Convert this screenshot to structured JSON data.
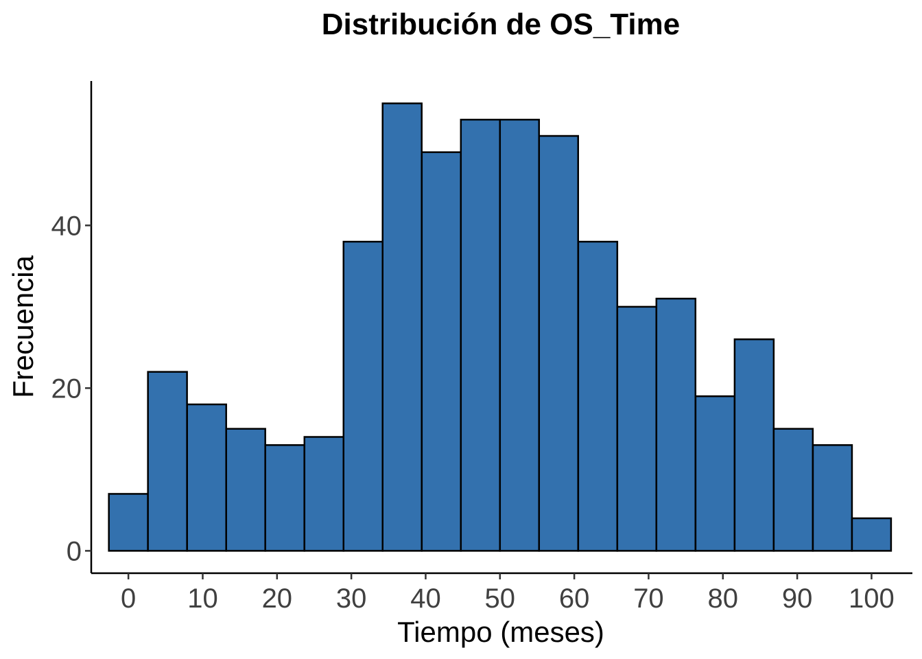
{
  "chart_data": {
    "type": "bar",
    "title": "Distribución de OS_Time",
    "xlabel": "Tiempo (meses)",
    "ylabel": "Frecuencia",
    "bin_width": 5.26,
    "bin_centers": [
      0,
      5.26,
      10.53,
      15.79,
      21.05,
      26.32,
      31.58,
      36.84,
      42.11,
      47.37,
      52.63,
      57.89,
      63.16,
      68.42,
      73.68,
      78.95,
      84.21,
      89.47,
      94.74,
      100
    ],
    "values": [
      7,
      22,
      18,
      15,
      13,
      14,
      38,
      55,
      49,
      53,
      53,
      51,
      38,
      30,
      31,
      19,
      26,
      15,
      13,
      4
    ],
    "xlim": [
      -5,
      105.5
    ],
    "ylim": [
      -2.75,
      57.75
    ],
    "x_ticks": [
      0,
      10,
      20,
      30,
      40,
      50,
      60,
      70,
      80,
      90,
      100
    ],
    "x_tick_labels": [
      "0",
      "10",
      "20",
      "30",
      "40",
      "50",
      "60",
      "70",
      "80",
      "90",
      "100"
    ],
    "y_ticks": [
      0,
      20,
      40
    ],
    "y_tick_labels": [
      "0",
      "20",
      "40"
    ],
    "bar_fill": "#3371AE",
    "bar_stroke": "#000000",
    "grid": false,
    "legend": "none"
  }
}
